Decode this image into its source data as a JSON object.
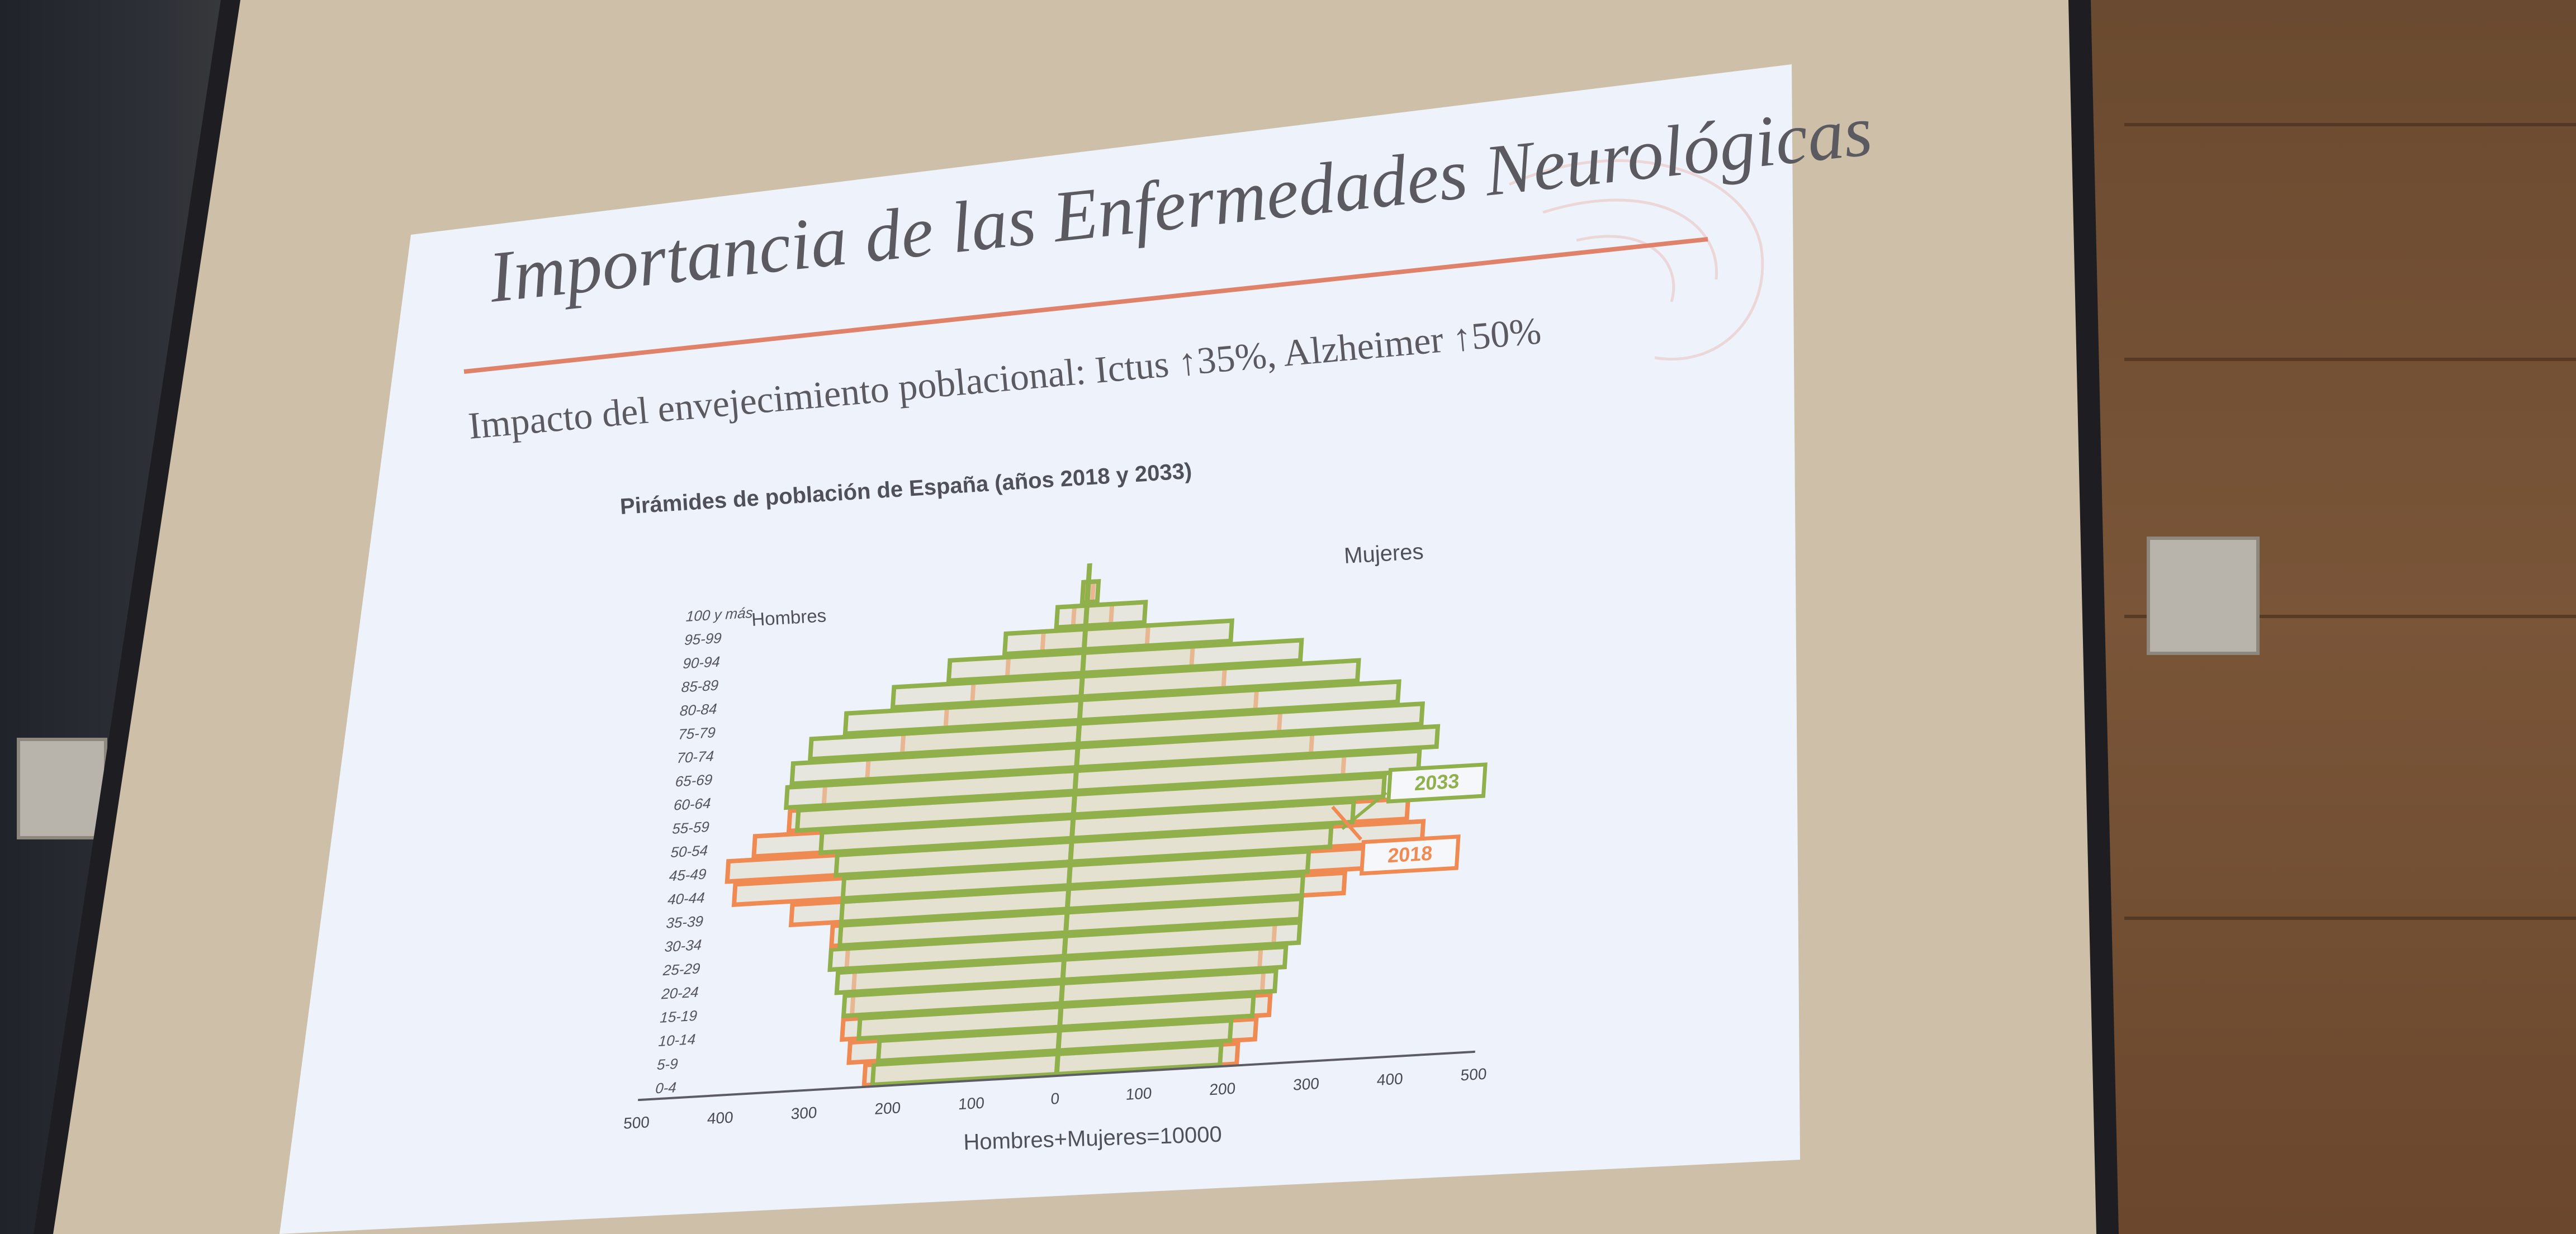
{
  "slide": {
    "title": "Importancia de las Enfermedades Neurológicas",
    "subtitle": "Impacto del envejecimiento poblacional: Ictus ↑35%, Alzheimer ↑50%"
  },
  "colors": {
    "accent_line": "#e0826a",
    "series_2018": "#ef8a52",
    "series_2033": "#8fb04a",
    "bar_fill": "#e1dcc6",
    "axis": "#5c5c64"
  },
  "chart_data": {
    "type": "population-pyramid",
    "title": "Pirámides de población de España (años 2018 y 2033)",
    "male_label": "Hombres",
    "female_label": "Mujeres",
    "xlabel": "Hombres+Mujeres=10000",
    "xlim": [
      -500,
      500
    ],
    "x_ticks": [
      500,
      400,
      300,
      200,
      100,
      0,
      100,
      200,
      300,
      400,
      500
    ],
    "age_groups": [
      "0-4",
      "5-9",
      "10-14",
      "15-19",
      "20-24",
      "25-29",
      "30-34",
      "35-39",
      "40-44",
      "45-49",
      "50-54",
      "55-59",
      "60-64",
      "65-69",
      "70-74",
      "75-79",
      "80-84",
      "85-89",
      "90-94",
      "95-99",
      "100 y más"
    ],
    "series": [
      {
        "name": "2018",
        "hombres": [
          -230,
          -250,
          -260,
          -250,
          -250,
          -260,
          -280,
          -330,
          -400,
          -410,
          -380,
          -340,
          -300,
          -250,
          -210,
          -160,
          -130,
          -90,
          -50,
          -15,
          -3
        ],
        "mujeres": [
          215,
          235,
          250,
          240,
          235,
          250,
          280,
          330,
          390,
          420,
          400,
          370,
          320,
          280,
          240,
          210,
          170,
          130,
          75,
          30,
          6
        ]
      },
      {
        "name": "2033",
        "hombres": [
          -220,
          -215,
          -240,
          -260,
          -270,
          -280,
          -270,
          -270,
          -270,
          -280,
          -300,
          -330,
          -345,
          -340,
          -320,
          -280,
          -225,
          -160,
          -95,
          -35,
          -6
        ],
        "mujeres": [
          195,
          205,
          230,
          255,
          265,
          280,
          280,
          280,
          285,
          310,
          335,
          370,
          410,
          430,
          410,
          380,
          330,
          260,
          175,
          70,
          12
        ]
      }
    ],
    "annotations": [
      "2033",
      "2018"
    ],
    "legend": "callouts at right"
  }
}
